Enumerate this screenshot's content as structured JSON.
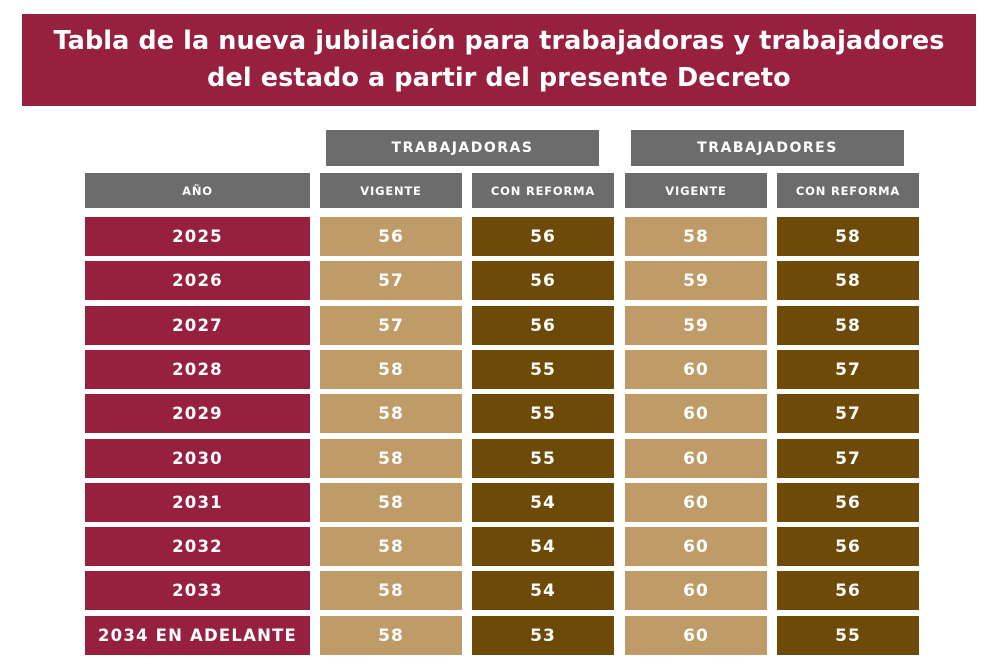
{
  "title": "Tabla de la nueva jubilación para trabajadoras y trabajadores del estado a partir del presente Decreto",
  "groups": {
    "trabajadoras": "TRABAJADORAS",
    "trabajadores": "TRABAJADORES"
  },
  "columns": {
    "year": "AÑO",
    "vigente_1": "VIGENTE",
    "reforma_1": "CON REFORMA",
    "vigente_2": "VIGENTE",
    "reforma_2": "CON REFORMA"
  },
  "colors": {
    "banner": "#98203f",
    "year_cell": "#98203f",
    "vigente_cell": "#bf9b67",
    "reforma_cell": "#6e4a08",
    "header_gray": "#6c6c6c"
  },
  "rows": [
    {
      "year": "2025",
      "trabajadoras_vigente": "56",
      "trabajadoras_reforma": "56",
      "trabajadores_vigente": "58",
      "trabajadores_reforma": "58"
    },
    {
      "year": "2026",
      "trabajadoras_vigente": "57",
      "trabajadoras_reforma": "56",
      "trabajadores_vigente": "59",
      "trabajadores_reforma": "58"
    },
    {
      "year": "2027",
      "trabajadoras_vigente": "57",
      "trabajadoras_reforma": "56",
      "trabajadores_vigente": "59",
      "trabajadores_reforma": "58"
    },
    {
      "year": "2028",
      "trabajadoras_vigente": "58",
      "trabajadoras_reforma": "55",
      "trabajadores_vigente": "60",
      "trabajadores_reforma": "57"
    },
    {
      "year": "2029",
      "trabajadoras_vigente": "58",
      "trabajadoras_reforma": "55",
      "trabajadores_vigente": "60",
      "trabajadores_reforma": "57"
    },
    {
      "year": "2030",
      "trabajadoras_vigente": "58",
      "trabajadoras_reforma": "55",
      "trabajadores_vigente": "60",
      "trabajadores_reforma": "57"
    },
    {
      "year": "2031",
      "trabajadoras_vigente": "58",
      "trabajadoras_reforma": "54",
      "trabajadores_vigente": "60",
      "trabajadores_reforma": "56"
    },
    {
      "year": "2032",
      "trabajadoras_vigente": "58",
      "trabajadoras_reforma": "54",
      "trabajadores_vigente": "60",
      "trabajadores_reforma": "56"
    },
    {
      "year": "2033",
      "trabajadoras_vigente": "58",
      "trabajadoras_reforma": "54",
      "trabajadores_vigente": "60",
      "trabajadores_reforma": "56"
    },
    {
      "year": "2034 EN ADELANTE",
      "trabajadoras_vigente": "58",
      "trabajadoras_reforma": "53",
      "trabajadores_vigente": "60",
      "trabajadores_reforma": "55"
    }
  ]
}
